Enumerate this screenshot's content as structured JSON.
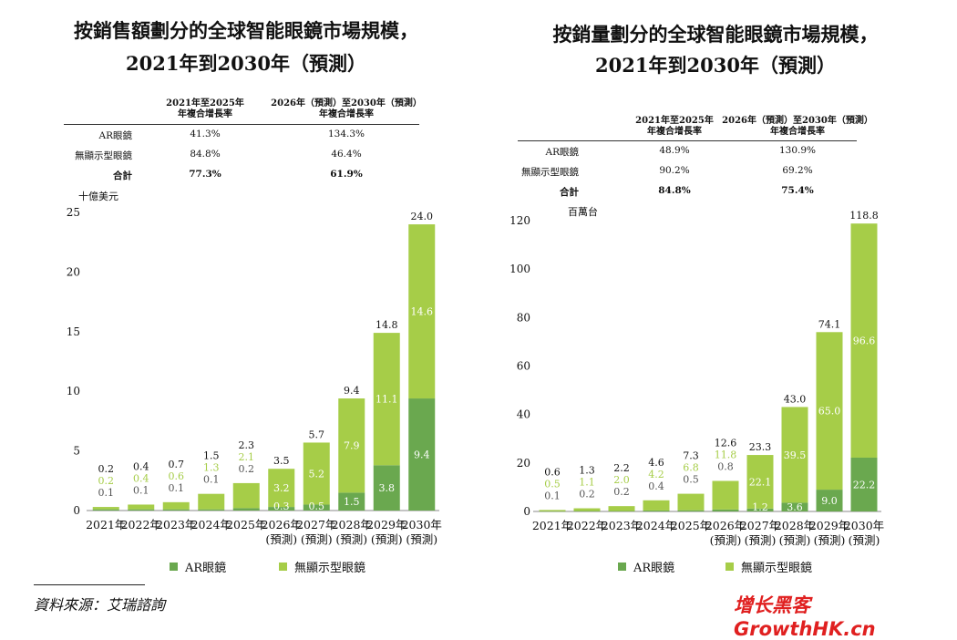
{
  "source": "資料來源：艾瑞諮詢",
  "watermark": "增长黑客 GrowthHK.cn",
  "colors": {
    "ar": "#6aa84f",
    "nonar": "#a6cd48"
  },
  "charts": [
    {
      "title_line1": "按銷售額劃分的全球智能眼鏡市場規模，",
      "title_line2": "2021年到2030年（預測）",
      "cagr_headers": [
        "2021年至2025年\n年複合增長率",
        "2026年（預測）至2030年（預測）\n年複合增長率"
      ],
      "cagr_rows": [
        {
          "label": "AR眼鏡",
          "v1": "41.3%",
          "v2": "134.3%",
          "bold": false
        },
        {
          "label": "無顯示型眼鏡",
          "v1": "84.8%",
          "v2": "46.4%",
          "bold": false
        },
        {
          "label": "合計",
          "v1": "77.3%",
          "v2": "61.9%",
          "bold": true
        }
      ],
      "unit": "十億美元",
      "legend_ar": "AR眼鏡",
      "legend_nonar": "無顯示型眼鏡",
      "chart_data": {
        "type": "bar",
        "stacked": true,
        "categories": [
          "2021年",
          "2022年",
          "2023年",
          "2024年",
          "2025年",
          "2026年\n(預測)",
          "2027年\n(預測)",
          "2028年\n(預測)",
          "2029年\n(預測)",
          "2030年\n(預測)"
        ],
        "ylim": [
          0,
          25
        ],
        "yticks": [
          0,
          5,
          10,
          15,
          20,
          25
        ],
        "series": [
          {
            "name": "AR眼鏡",
            "values": [
              0.1,
              0.1,
              0.1,
              0.1,
              0.2,
              0.3,
              0.5,
              1.5,
              3.8,
              9.4
            ],
            "labels": [
              "0.1",
              "0.1",
              "0.1",
              "0.1",
              "0.2",
              "0.3",
              "0.5",
              "1.5",
              "3.8",
              "9.4"
            ]
          },
          {
            "name": "無顯示型眼鏡",
            "values": [
              0.2,
              0.4,
              0.6,
              1.3,
              2.1,
              3.2,
              5.2,
              7.9,
              11.1,
              14.6
            ],
            "labels": [
              "0.2",
              "0.4",
              "0.6",
              "1.3",
              "2.1",
              "3.2",
              "5.2",
              "7.9",
              "11.1",
              "14.6"
            ]
          }
        ],
        "totals": [
          "0.2",
          "0.4",
          "0.7",
          "1.5",
          "2.3",
          "3.5",
          "5.7",
          "9.4",
          "14.8",
          "24.0"
        ]
      }
    },
    {
      "title_line1": "按銷量劃分的全球智能眼鏡市場規模，",
      "title_line2": "2021年到2030年（預測）",
      "cagr_headers": [
        "2021年至2025年\n年複合增長率",
        "2026年（預測）至2030年（預測）\n年複合增長率"
      ],
      "cagr_rows": [
        {
          "label": "AR眼鏡",
          "v1": "48.9%",
          "v2": "130.9%",
          "bold": false
        },
        {
          "label": "無顯示型眼鏡",
          "v1": "90.2%",
          "v2": "69.2%",
          "bold": false
        },
        {
          "label": "合計",
          "v1": "84.8%",
          "v2": "75.4%",
          "bold": true
        }
      ],
      "unit": "百萬台",
      "legend_ar": "AR眼鏡",
      "legend_nonar": "無顯示型眼鏡",
      "chart_data": {
        "type": "bar",
        "stacked": true,
        "categories": [
          "2021年",
          "2022年",
          "2023年",
          "2024年",
          "2025年",
          "2026年\n(預測)",
          "2027年\n(預測)",
          "2028年\n(預測)",
          "2029年\n(預測)",
          "2030年\n(預測)"
        ],
        "ylim": [
          0,
          120
        ],
        "yticks": [
          0,
          20,
          40,
          60,
          80,
          100,
          120
        ],
        "series": [
          {
            "name": "AR眼鏡",
            "values": [
              0.1,
              0.2,
              0.2,
              0.4,
              0.5,
              0.8,
              1.2,
              3.6,
              9.0,
              22.2
            ],
            "labels": [
              "0.1",
              "0.2",
              "0.2",
              "0.4",
              "0.5",
              "0.8",
              "1.2",
              "3.6",
              "9.0",
              "22.2"
            ]
          },
          {
            "name": "無顯示型眼鏡",
            "values": [
              0.5,
              1.1,
              2.0,
              4.2,
              6.8,
              11.8,
              22.1,
              39.5,
              65.0,
              96.6
            ],
            "labels": [
              "0.5",
              "1.1",
              "2.0",
              "4.2",
              "6.8",
              "11.8",
              "22.1",
              "39.5",
              "65.0",
              "96.6"
            ]
          }
        ],
        "totals": [
          "0.6",
          "1.3",
          "2.2",
          "4.6",
          "7.3",
          "12.6",
          "23.3",
          "43.0",
          "74.1",
          "118.8"
        ]
      }
    }
  ]
}
